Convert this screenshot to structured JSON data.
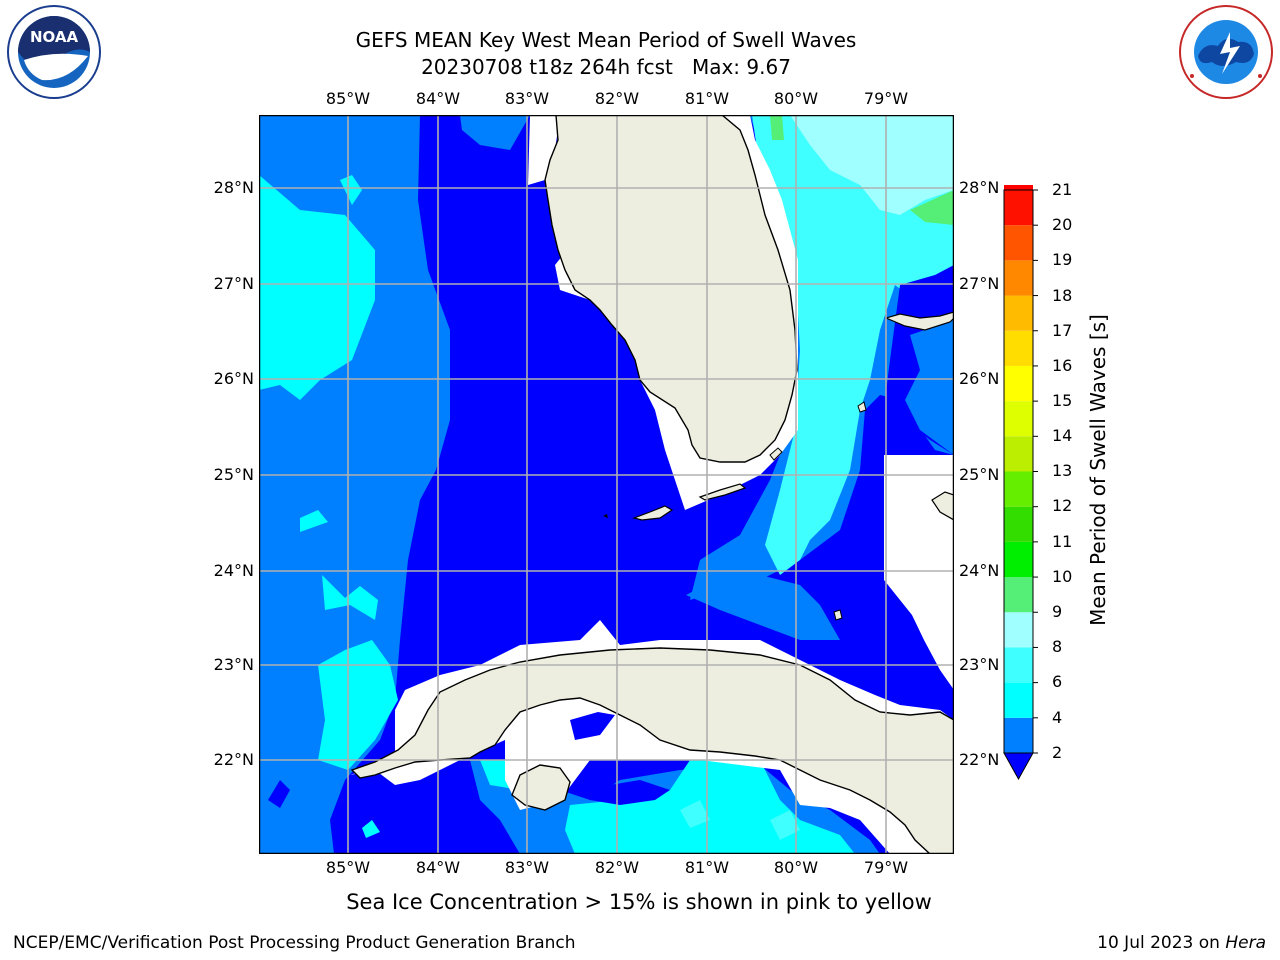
{
  "header": {
    "title_line1": "GEFS MEAN Key West Mean Period of Swell Waves",
    "title_line2": "20230708 t18z 264h fcst   Max: 9.67"
  },
  "logos": {
    "left": "noaa-logo",
    "right": "national-weather-service-logo",
    "noaa_text": "NOAA",
    "noaa_ring_text": "NATIONAL OCEANIC AND ATMOSPHERIC ADMINISTRATION · U.S. DEPARTMENT OF COMMERCE",
    "nws_ring_text": "NATIONAL WEATHER SERVICE"
  },
  "map": {
    "lon_labels": [
      "85°W",
      "84°W",
      "83°W",
      "82°W",
      "81°W",
      "80°W",
      "79°W"
    ],
    "lat_labels": [
      "28°N",
      "27°N",
      "26°N",
      "25°N",
      "24°N",
      "23°N",
      "22°N"
    ],
    "colors": {
      "land": "#eeeee0",
      "coast": "#000000",
      "grid": "#b0b0b0"
    }
  },
  "colorbar": {
    "label": "Mean Period of Swell Waves [s]",
    "ticks": [
      "2",
      "4",
      "6",
      "8",
      "9",
      "10",
      "11",
      "12",
      "13",
      "14",
      "15",
      "16",
      "17",
      "18",
      "19",
      "20",
      "21"
    ],
    "colors": [
      "#0000ff",
      "#0080ff",
      "#00ffff",
      "#40ffff",
      "#a0ffff",
      "#55ee77",
      "#00ee00",
      "#33dd00",
      "#66ee00",
      "#bbee00",
      "#ddff00",
      "#ffff00",
      "#ffdd00",
      "#ffbb00",
      "#ff8800",
      "#ff5500",
      "#ff1100",
      "#ff0000"
    ],
    "extend": "min"
  },
  "note": "Sea Ice Concentration > 15% is shown in pink to yellow",
  "footer": {
    "left": "NCEP/EMC/Verification Post Processing Product Generation Branch",
    "date": "10 Jul 2023 on ",
    "machine": "Hera"
  }
}
